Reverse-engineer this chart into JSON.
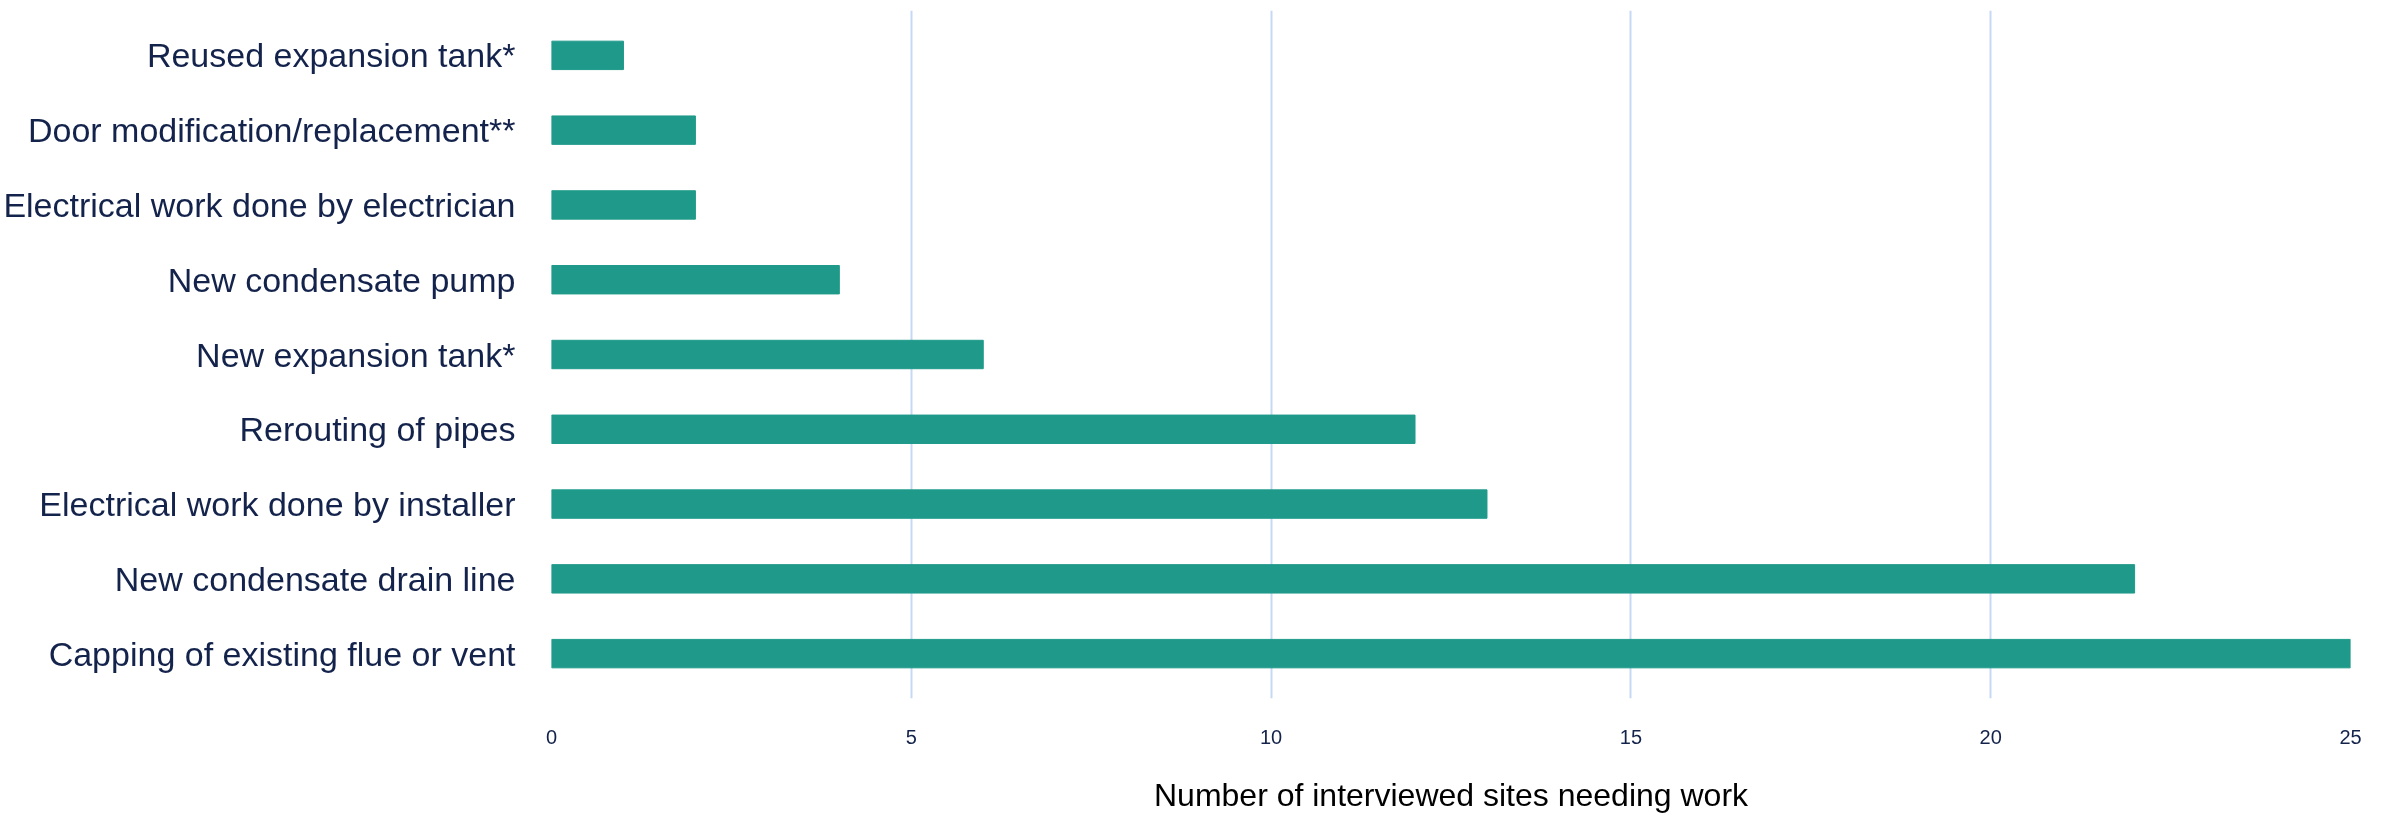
{
  "chart_data": {
    "type": "bar",
    "orientation": "horizontal",
    "xlabel": "Number of interviewed sites needing work",
    "categories": [
      "Reused expansion tank*",
      "Door modification/replacement**",
      "Electrical work done by electrician",
      "New condensate pump",
      "New expansion tank*",
      "Rerouting of pipes",
      "Electrical work done by installer",
      "New condensate drain line",
      "Capping of existing flue or vent"
    ],
    "values": [
      1,
      2,
      2,
      4,
      6,
      12,
      13,
      22,
      25
    ],
    "color": "#1f9a8a",
    "xlim": [
      0,
      25
    ],
    "xticks": [
      0,
      5,
      10,
      15,
      20,
      25
    ],
    "grid": "x"
  }
}
